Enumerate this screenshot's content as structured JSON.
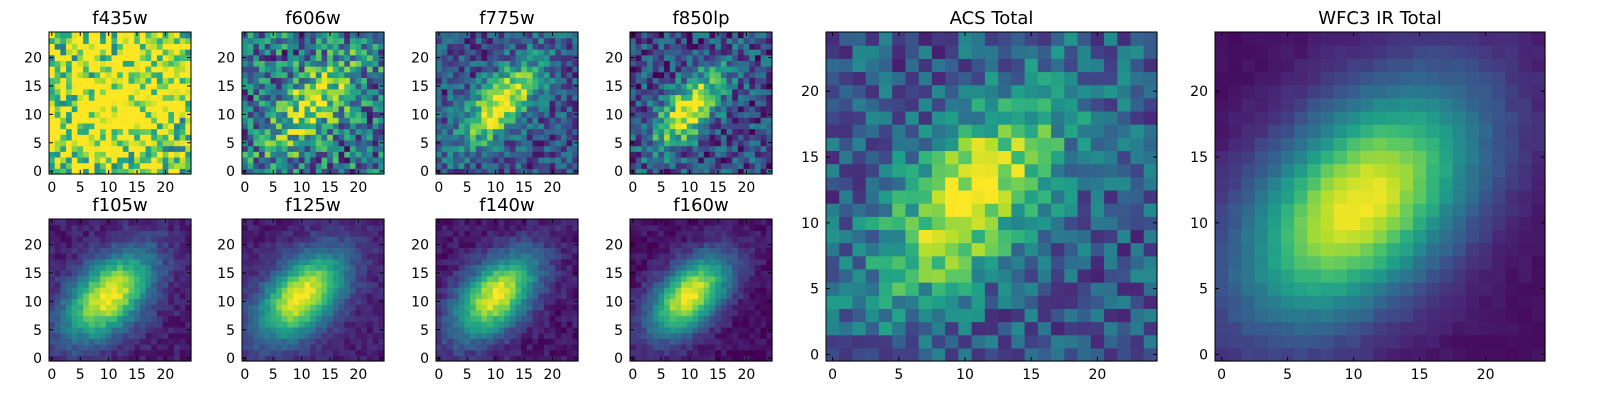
{
  "chart_data": [
    {
      "type": "heatmap",
      "title": "f435w",
      "xticks": [
        "0",
        "5",
        "10",
        "15",
        "20"
      ],
      "yticks": [
        "0",
        "5",
        "10",
        "15",
        "20"
      ],
      "xlim": [
        -0.5,
        24.5
      ],
      "ylim": [
        -0.5,
        24.5
      ],
      "grid": false,
      "colormap": "viridis",
      "image": {
        "size": 25,
        "cx": 12,
        "cy": 12,
        "sigma_major": 9,
        "sigma_minor": 5,
        "angle_deg": 45,
        "peak": 0.35,
        "background": 0.8,
        "noise": 0.45,
        "seed": 11
      }
    },
    {
      "type": "heatmap",
      "title": "f606w",
      "xticks": [
        "0",
        "5",
        "10",
        "15",
        "20"
      ],
      "yticks": [
        "0",
        "5",
        "10",
        "15",
        "20"
      ],
      "xlim": [
        -0.5,
        24.5
      ],
      "ylim": [
        -0.5,
        24.5
      ],
      "grid": false,
      "colormap": "viridis",
      "image": {
        "size": 25,
        "cx": 12,
        "cy": 12,
        "sigma_major": 7,
        "sigma_minor": 3.2,
        "angle_deg": 48,
        "peak": 0.55,
        "background": 0.38,
        "noise": 0.35,
        "seed": 23
      }
    },
    {
      "type": "heatmap",
      "title": "f775w",
      "xticks": [
        "0",
        "5",
        "10",
        "15",
        "20"
      ],
      "yticks": [
        "0",
        "5",
        "10",
        "15",
        "20"
      ],
      "xlim": [
        -0.5,
        24.5
      ],
      "ylim": [
        -0.5,
        24.5
      ],
      "grid": false,
      "colormap": "viridis",
      "image": {
        "size": 25,
        "cx": 11,
        "cy": 12,
        "sigma_major": 6.5,
        "sigma_minor": 2.8,
        "angle_deg": 48,
        "peak": 0.75,
        "background": 0.25,
        "noise": 0.22,
        "seed": 37
      }
    },
    {
      "type": "heatmap",
      "title": "f850lp",
      "xticks": [
        "0",
        "5",
        "10",
        "15",
        "20"
      ],
      "yticks": [
        "0",
        "5",
        "10",
        "15",
        "20"
      ],
      "xlim": [
        -0.5,
        24.5
      ],
      "ylim": [
        -0.5,
        24.5
      ],
      "grid": false,
      "colormap": "viridis",
      "image": {
        "size": 25,
        "cx": 10,
        "cy": 11,
        "sigma_major": 5.8,
        "sigma_minor": 2.6,
        "angle_deg": 50,
        "peak": 0.8,
        "background": 0.22,
        "noise": 0.25,
        "seed": 41
      }
    },
    {
      "type": "heatmap",
      "title": "f105w",
      "xticks": [
        "0",
        "5",
        "10",
        "15",
        "20"
      ],
      "yticks": [
        "0",
        "5",
        "10",
        "15",
        "20"
      ],
      "xlim": [
        -0.5,
        24.5
      ],
      "ylim": [
        -0.5,
        24.5
      ],
      "grid": false,
      "colormap": "viridis",
      "image": {
        "size": 25,
        "cx": 10,
        "cy": 11,
        "sigma_major": 6.5,
        "sigma_minor": 3.8,
        "angle_deg": 45,
        "peak": 0.92,
        "background": 0.08,
        "noise": 0.07,
        "seed": 53
      }
    },
    {
      "type": "heatmap",
      "title": "f125w",
      "xticks": [
        "0",
        "5",
        "10",
        "15",
        "20"
      ],
      "yticks": [
        "0",
        "5",
        "10",
        "15",
        "20"
      ],
      "xlim": [
        -0.5,
        24.5
      ],
      "ylim": [
        -0.5,
        24.5
      ],
      "grid": false,
      "colormap": "viridis",
      "image": {
        "size": 25,
        "cx": 10,
        "cy": 11,
        "sigma_major": 6.5,
        "sigma_minor": 3.8,
        "angle_deg": 45,
        "peak": 0.92,
        "background": 0.08,
        "noise": 0.06,
        "seed": 61
      }
    },
    {
      "type": "heatmap",
      "title": "f140w",
      "xticks": [
        "0",
        "5",
        "10",
        "15",
        "20"
      ],
      "yticks": [
        "0",
        "5",
        "10",
        "15",
        "20"
      ],
      "xlim": [
        -0.5,
        24.5
      ],
      "ylim": [
        -0.5,
        24.5
      ],
      "grid": false,
      "colormap": "viridis",
      "image": {
        "size": 25,
        "cx": 10,
        "cy": 11,
        "sigma_major": 6.3,
        "sigma_minor": 3.6,
        "angle_deg": 45,
        "peak": 0.92,
        "background": 0.06,
        "noise": 0.07,
        "seed": 71
      }
    },
    {
      "type": "heatmap",
      "title": "f160w",
      "xticks": [
        "0",
        "5",
        "10",
        "15",
        "20"
      ],
      "yticks": [
        "0",
        "5",
        "10",
        "15",
        "20"
      ],
      "xlim": [
        -0.5,
        24.5
      ],
      "ylim": [
        -0.5,
        24.5
      ],
      "grid": false,
      "colormap": "viridis",
      "image": {
        "size": 25,
        "cx": 10,
        "cy": 11,
        "sigma_major": 6.0,
        "sigma_minor": 3.4,
        "angle_deg": 45,
        "peak": 0.95,
        "background": 0.04,
        "noise": 0.06,
        "seed": 83
      }
    },
    {
      "type": "heatmap",
      "title": "ACS Total",
      "xticks": [
        "0",
        "5",
        "10",
        "15",
        "20"
      ],
      "yticks": [
        "0",
        "5",
        "10",
        "15",
        "20"
      ],
      "xlim": [
        -0.5,
        24.5
      ],
      "ylim": [
        -0.5,
        24.5
      ],
      "grid": false,
      "colormap": "viridis",
      "image": {
        "size": 25,
        "cx": 10.5,
        "cy": 12,
        "sigma_major": 6.5,
        "sigma_minor": 3.0,
        "angle_deg": 50,
        "peak": 0.72,
        "background": 0.28,
        "noise": 0.2,
        "seed": 97
      }
    },
    {
      "type": "heatmap",
      "title": "WFC3 IR Total",
      "xticks": [
        "0",
        "5",
        "10",
        "15",
        "20"
      ],
      "yticks": [
        "0",
        "5",
        "10",
        "15",
        "20"
      ],
      "xlim": [
        -0.5,
        24.5
      ],
      "ylim": [
        -0.5,
        24.5
      ],
      "grid": false,
      "colormap": "viridis",
      "image": {
        "size": 25,
        "cx": 10.5,
        "cy": 11.5,
        "sigma_major": 7.5,
        "sigma_minor": 4.5,
        "angle_deg": 45,
        "peak": 0.95,
        "background": 0.04,
        "noise": 0.02,
        "seed": 101
      }
    }
  ]
}
